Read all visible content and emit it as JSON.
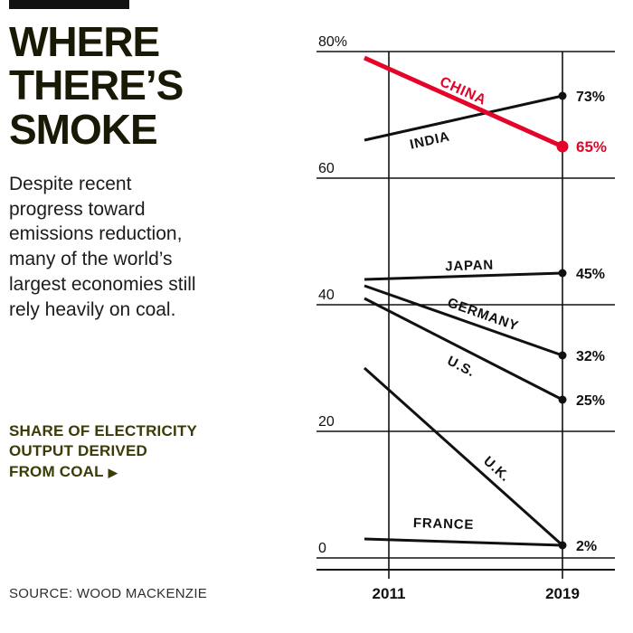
{
  "header": {
    "title": "WHERE\nTHERE’S\nSMOKE"
  },
  "intro": {
    "text": "Despite recent\nprogress toward\nemissions reduction,\nmany of the world’s\nlargest economies still\nrely heavily on coal."
  },
  "kicker": {
    "text": "SHARE OF ELECTRICITY\nOUTPUT DERIVED\nFROM COAL",
    "arrow": "▶"
  },
  "source": {
    "text": "SOURCE: WOOD MACKENZIE"
  },
  "colors": {
    "accent_red": "#e40429",
    "ink": "#111111",
    "title_ink": "#191905",
    "kicker_ink": "#3b3b06"
  },
  "chart_data": {
    "type": "line",
    "title": "Share of electricity output derived from coal",
    "x": [
      "2011",
      "2019"
    ],
    "ylim": [
      0,
      80
    ],
    "grid": true,
    "yticks": [
      {
        "label": "80%",
        "value": 80
      },
      {
        "label": "60",
        "value": 60
      },
      {
        "label": "40",
        "value": 40
      },
      {
        "label": "20",
        "value": 20
      },
      {
        "label": "0",
        "value": 0
      }
    ],
    "series": [
      {
        "name": "INDIA",
        "values": [
          66,
          73
        ],
        "color": "#111111",
        "width": 3,
        "dot": true,
        "dot_r": 4.5,
        "end_label": "73%",
        "end_label_size": 16,
        "label_size": 15,
        "label": {
          "t": 0.33,
          "offset": 16
        }
      },
      {
        "name": "JAPAN",
        "values": [
          44,
          45
        ],
        "color": "#111111",
        "width": 3,
        "dot": true,
        "dot_r": 4.5,
        "end_label": "45%",
        "end_label_size": 16,
        "label_size": 15,
        "label": {
          "t": 0.53,
          "offset": -12
        }
      },
      {
        "name": "GERMANY",
        "values": [
          43,
          32
        ],
        "color": "#111111",
        "width": 3,
        "dot": true,
        "dot_r": 4.5,
        "end_label": "32%",
        "end_label_size": 16,
        "label_size": 15,
        "label": {
          "t": 0.6,
          "offset": -15
        }
      },
      {
        "name": "U.S.",
        "values": [
          41,
          25
        ],
        "color": "#111111",
        "width": 3,
        "dot": true,
        "dot_r": 4.5,
        "end_label": "25%",
        "end_label_size": 16,
        "label_size": 15,
        "label": {
          "t": 0.49,
          "offset": 20
        }
      },
      {
        "name": "U.K.",
        "values": [
          30,
          2
        ],
        "color": "#111111",
        "width": 3,
        "dot": true,
        "dot_r": 4.5,
        "end_label": "2%",
        "end_label_size": 16,
        "label_size": 15,
        "label": {
          "t": 0.67,
          "offset": -20
        }
      },
      {
        "name": "FRANCE",
        "values": [
          3,
          2
        ],
        "color": "#111111",
        "width": 3,
        "dot": false,
        "dot_r": 4.5,
        "end_label": "",
        "end_label_size": 16,
        "label_size": 15,
        "label": {
          "t": 0.4,
          "offset": -20
        }
      },
      {
        "name": "CHINA",
        "values": [
          79,
          65
        ],
        "color": "#e40429",
        "width": 5,
        "dot": true,
        "dot_r": 6.5,
        "end_label": "65%",
        "end_label_size": 17,
        "label_size": 16,
        "label": {
          "t": 0.5,
          "offset": -13
        }
      }
    ]
  }
}
